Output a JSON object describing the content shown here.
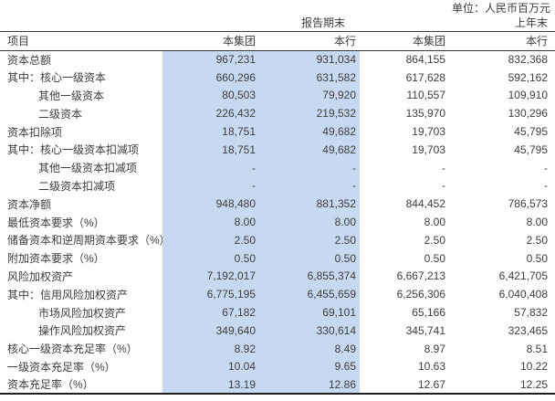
{
  "unit_label": "单位：人民币百万元",
  "colors": {
    "highlight_bg": "#c7d8f1",
    "text": "#3d3d3d",
    "rule": "#3c3c3c"
  },
  "table": {
    "group_headers": {
      "current": "报告期末",
      "prior": "上年末"
    },
    "item_header": "项目",
    "col_headers": [
      "本集团",
      "本行",
      "本集团",
      "本行"
    ],
    "rows": [
      {
        "label": "资本总额",
        "indent": 0,
        "values": [
          "967,231",
          "931,034",
          "864,155",
          "832,368"
        ]
      },
      {
        "label": "其中：核心一级资本",
        "indent": 0,
        "values": [
          "660,296",
          "631,582",
          "617,628",
          "592,162"
        ]
      },
      {
        "label": "其他一级资本",
        "indent": 1,
        "values": [
          "80,503",
          "79,920",
          "110,557",
          "109,910"
        ]
      },
      {
        "label": "二级资本",
        "indent": 1,
        "values": [
          "226,432",
          "219,532",
          "135,970",
          "130,296"
        ]
      },
      {
        "label": "资本扣除项",
        "indent": 0,
        "values": [
          "18,751",
          "49,682",
          "19,703",
          "45,795"
        ]
      },
      {
        "label": "其中：核心一级资本扣减项",
        "indent": 0,
        "values": [
          "18,751",
          "49,682",
          "19,703",
          "45,795"
        ]
      },
      {
        "label": "其他一级资本扣减项",
        "indent": 1,
        "values": [
          "-",
          "-",
          "-",
          "-"
        ]
      },
      {
        "label": "二级资本扣减项",
        "indent": 1,
        "values": [
          "-",
          "-",
          "-",
          "-"
        ]
      },
      {
        "label": "资本净额",
        "indent": 0,
        "values": [
          "948,480",
          "881,352",
          "844,452",
          "786,573"
        ]
      },
      {
        "label": "最低资本要求（%）",
        "indent": 0,
        "values": [
          "8.00",
          "8.00",
          "8.00",
          "8.00"
        ]
      },
      {
        "label": "储备资本和逆周期资本要求（%）",
        "indent": 0,
        "values": [
          "2.50",
          "2.50",
          "2.50",
          "2.50"
        ]
      },
      {
        "label": "附加资本要求（%）",
        "indent": 0,
        "values": [
          "0.50",
          "0.50",
          "0.50",
          "0.50"
        ]
      },
      {
        "label": "风险加权资产",
        "indent": 0,
        "values": [
          "7,192,017",
          "6,855,374",
          "6,667,213",
          "6,421,705"
        ]
      },
      {
        "label": "其中：信用风险加权资产",
        "indent": 0,
        "values": [
          "6,775,195",
          "6,455,659",
          "6,256,306",
          "6,040,408"
        ]
      },
      {
        "label": "市场风险加权资产",
        "indent": 1,
        "values": [
          "67,182",
          "69,101",
          "65,166",
          "57,832"
        ]
      },
      {
        "label": "操作风险加权资产",
        "indent": 1,
        "values": [
          "349,640",
          "330,614",
          "345,741",
          "323,465"
        ]
      },
      {
        "label": "核心一级资本充足率（%）",
        "indent": 0,
        "values": [
          "8.92",
          "8.49",
          "8.97",
          "8.51"
        ]
      },
      {
        "label": "一级资本充足率（%）",
        "indent": 0,
        "values": [
          "10.04",
          "9.65",
          "10.63",
          "10.22"
        ]
      },
      {
        "label": "资本充足率（%）",
        "indent": 0,
        "values": [
          "13.19",
          "12.86",
          "12.67",
          "12.25"
        ]
      }
    ]
  }
}
